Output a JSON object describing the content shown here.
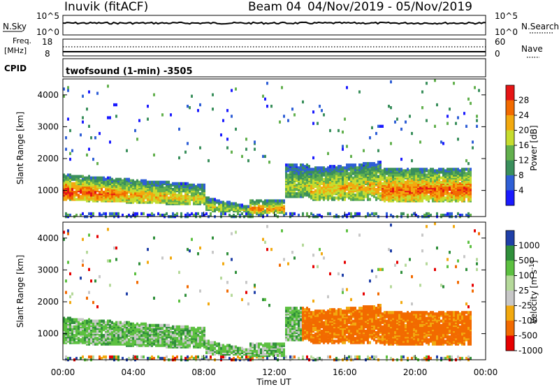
{
  "header": {
    "station": "Inuvik (fitACF)",
    "beam_label": "Beam 04",
    "date_range": "04/Nov/2019 - 05/Nov/2019"
  },
  "top_panels": {
    "nsky": {
      "left_label": "N.Sky",
      "left_ticks": [
        "10^5",
        "10^0"
      ],
      "right_label": "N.Search",
      "right_ticks": [
        "10^5",
        "10^0"
      ]
    },
    "freq": {
      "left_label_1": "Freq.",
      "left_label_2": "[MHz]",
      "left_ticks": [
        "18",
        "8"
      ],
      "right_label": "Nave",
      "right_ticks": [
        "60",
        "0"
      ]
    },
    "cpid_label": "CPID",
    "cpid_text": "twofsound (1-min) -3505"
  },
  "colors": {
    "power": [
      "#1a1aff",
      "#2f5fd6",
      "#3a8f5c",
      "#62b04d",
      "#c6dc2e",
      "#f2a90f",
      "#f26a00",
      "#e61515"
    ],
    "velocity": [
      "#e60000",
      "#f26a00",
      "#f2a90f",
      "#c7c7c7",
      "#b5d99a",
      "#5cc040",
      "#2f8f3a",
      "#1f3fa8"
    ]
  },
  "chart_data": [
    {
      "type": "heatmap",
      "title": "Power",
      "xlabel": "Time UT",
      "ylabel": "Slant Range [km]",
      "colorbar_label": "Power [dB]",
      "colorbar_ticks": [
        "4",
        "8",
        "12",
        "16",
        "20",
        "24",
        "28"
      ],
      "x_ticks": [
        "00:00",
        "04:00",
        "08:00",
        "12:00",
        "16:00",
        "20:00",
        "00:00"
      ],
      "y_ticks": [
        "1000",
        "2000",
        "3000",
        "4000"
      ],
      "xlim_hours": [
        0,
        24
      ],
      "ylim_km": [
        180,
        4500
      ]
    },
    {
      "type": "heatmap",
      "title": "Velocity",
      "xlabel": "Time UT",
      "ylabel": "Slant Range [km]",
      "colorbar_label": "Velocity [m s^-1]",
      "colorbar_ticks": [
        "1000",
        "500",
        "100",
        "25",
        "-25",
        "-100",
        "-500",
        "-1000"
      ],
      "x_ticks": [
        "00:00",
        "04:00",
        "08:00",
        "12:00",
        "16:00",
        "20:00",
        "00:00"
      ],
      "y_ticks": [
        "1000",
        "2000",
        "3000",
        "4000"
      ],
      "xlim_hours": [
        0,
        24
      ],
      "ylim_km": [
        180,
        4500
      ]
    }
  ]
}
